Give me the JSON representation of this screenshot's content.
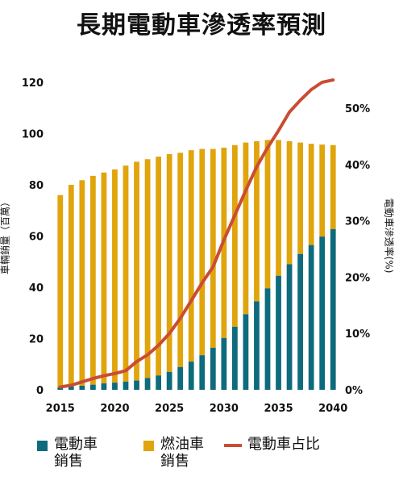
{
  "title": "長期電動車滲透率預測",
  "chart_data": {
    "type": "bar",
    "stacked": true,
    "x": [
      2015,
      2016,
      2017,
      2018,
      2019,
      2020,
      2021,
      2022,
      2023,
      2024,
      2025,
      2026,
      2027,
      2028,
      2029,
      2030,
      2031,
      2032,
      2033,
      2034,
      2035,
      2036,
      2037,
      2038,
      2039,
      2040
    ],
    "x_ticks": [
      2015,
      2020,
      2025,
      2030,
      2035,
      2040
    ],
    "ylabel": "車輛銷量（百萬）",
    "ylim": [
      0,
      120
    ],
    "y_ticks": [
      0,
      20,
      40,
      60,
      80,
      100,
      120
    ],
    "y2label": "電動車滲透率(%)",
    "y2lim": [
      0,
      50
    ],
    "y2_ticks": [
      "0%",
      "10%",
      "20%",
      "30%",
      "40%",
      "50%"
    ],
    "series": [
      {
        "name": "電動車銷售",
        "color": "#0e6b7d",
        "values": [
          1.0,
          1.3,
          1.6,
          2.0,
          2.5,
          2.8,
          3.2,
          3.6,
          4.6,
          5.6,
          7.0,
          8.9,
          11.0,
          13.5,
          16.4,
          20.2,
          24.6,
          29.5,
          34.5,
          39.6,
          44.5,
          49.0,
          53.0,
          56.5,
          59.8,
          62.7
        ]
      },
      {
        "name": "燃油車銷售",
        "color": "#e0a40c",
        "values": [
          75.0,
          78.7,
          80.2,
          81.5,
          82.3,
          83.2,
          84.3,
          85.4,
          85.4,
          85.4,
          85.0,
          83.6,
          82.5,
          80.5,
          77.6,
          74.3,
          70.9,
          67.0,
          62.5,
          57.9,
          53.0,
          48.0,
          43.5,
          39.5,
          35.9,
          32.8
        ]
      },
      {
        "name": "電動車占比",
        "color": "#c94d33",
        "values": [
          0.5,
          0.8,
          1.4,
          2.0,
          2.5,
          2.9,
          3.4,
          5.0,
          6.2,
          7.9,
          10.0,
          12.7,
          15.8,
          19.0,
          21.8,
          26.6,
          31.0,
          35.4,
          39.6,
          43.0,
          46.0,
          49.3,
          51.4,
          53.3,
          54.6,
          55.0
        ]
      }
    ],
    "legend_position": "bottom",
    "legend": [
      {
        "label": "電動車銷售",
        "line1": "電動車",
        "line2": "銷售",
        "color": "#0e6b7d",
        "kind": "box"
      },
      {
        "label": "燃油車銷售",
        "line1": "燃油車",
        "line2": "銷售",
        "color": "#e0a40c",
        "kind": "box"
      },
      {
        "label": "電動車占比",
        "line1": "電動車占比",
        "line2": "",
        "color": "#c94d33",
        "kind": "line"
      }
    ]
  }
}
